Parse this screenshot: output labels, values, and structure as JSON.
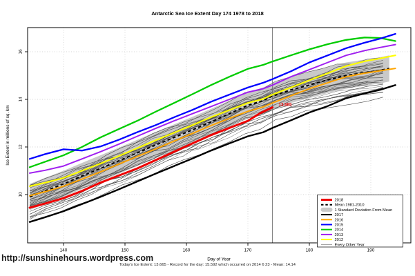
{
  "page": {
    "title": "Antarctic Sea Ice Extent Day 174 1978 to 2018",
    "footer_url": "http://sunshinehours.wordpress.com",
    "footnote": "Today's Ice Extent: 13.665  - Record for the day: 15.592 which occurred on 2014 6 23  - Mean: 14.14"
  },
  "chart_data": {
    "type": "line",
    "title": "Antarctic Sea Ice Extent Day 174 1978 to 2018",
    "xlabel": "Day of Year",
    "ylabel": "Ice Extent in millions of sq. km",
    "xlim": [
      134,
      196.5
    ],
    "ylim": [
      8,
      17
    ],
    "xticks": [
      140,
      150,
      160,
      170,
      180,
      190
    ],
    "yticks": [
      10,
      12,
      14,
      16
    ],
    "grid": "dotted",
    "legend_position": "bottom-right",
    "today": {
      "ice_extent": 13.665,
      "record_for_day": 15.592,
      "record_date": "2014 6 23",
      "mean": 14.14,
      "day_of_year": 174
    },
    "vline": {
      "x_day": 174,
      "color": "#707070"
    },
    "annotation": {
      "text": "13.665",
      "x_day": 175,
      "value": 13.72,
      "color": "#EE0000"
    },
    "mean_line": {
      "name": "Mean 1981-2010",
      "color": "#000000",
      "width": 2,
      "dash": [
        4.5,
        3.5
      ],
      "points": [
        [
          134.5,
          9.9
        ],
        [
          137,
          10.15
        ],
        [
          140,
          10.45
        ],
        [
          143,
          10.78
        ],
        [
          146,
          11.1
        ],
        [
          149,
          11.42
        ],
        [
          152,
          11.75
        ],
        [
          155,
          12.08
        ],
        [
          158,
          12.4
        ],
        [
          161,
          12.72
        ],
        [
          164,
          13.05
        ],
        [
          167,
          13.4
        ],
        [
          170,
          13.75
        ],
        [
          172.5,
          13.95
        ],
        [
          174,
          14.14
        ],
        [
          177,
          14.4
        ],
        [
          180,
          14.6
        ],
        [
          183,
          14.82
        ],
        [
          186,
          15.0
        ],
        [
          189,
          15.12
        ],
        [
          191.5,
          15.22
        ],
        [
          193,
          15.3
        ]
      ]
    },
    "band": {
      "name": "1 Standard Deviation From Mean",
      "color": "#C9C9C9",
      "half_width": 0.55
    },
    "background_years": {
      "name": "Every Other Year",
      "color": "#4D4D4D",
      "width": 0.55,
      "count": 30,
      "spread": 1.2,
      "seed": 7
    },
    "series": [
      {
        "name": "2016",
        "color": "#FFA500",
        "width": 2,
        "points": [
          [
            134.5,
            9.95
          ],
          [
            137,
            10.12
          ],
          [
            140,
            10.35
          ],
          [
            143,
            10.65
          ],
          [
            146,
            10.95
          ],
          [
            149,
            11.28
          ],
          [
            152,
            11.6
          ],
          [
            155,
            11.92
          ],
          [
            158,
            12.25
          ],
          [
            161,
            12.57
          ],
          [
            164,
            12.9
          ],
          [
            167,
            13.2
          ],
          [
            170,
            13.5
          ],
          [
            172.5,
            13.68
          ],
          [
            174,
            13.85
          ],
          [
            177,
            14.15
          ],
          [
            180,
            14.45
          ],
          [
            183,
            14.7
          ],
          [
            186,
            14.95
          ],
          [
            189,
            15.1
          ],
          [
            191.5,
            15.2
          ],
          [
            194,
            15.3
          ]
        ]
      },
      {
        "name": "2012",
        "color": "#FFFF00",
        "width": 2.2,
        "points": [
          [
            134.5,
            10.35
          ],
          [
            137,
            10.5
          ],
          [
            140,
            10.7
          ],
          [
            143,
            11.0
          ],
          [
            146,
            11.3
          ],
          [
            149,
            11.62
          ],
          [
            152,
            11.95
          ],
          [
            155,
            12.28
          ],
          [
            158,
            12.6
          ],
          [
            161,
            12.92
          ],
          [
            164,
            13.25
          ],
          [
            167,
            13.55
          ],
          [
            170,
            13.85
          ],
          [
            172.5,
            14.02
          ],
          [
            174,
            14.2
          ],
          [
            177,
            14.5
          ],
          [
            180,
            14.8
          ],
          [
            183,
            15.1
          ],
          [
            186,
            15.4
          ],
          [
            189,
            15.6
          ],
          [
            191.5,
            15.72
          ],
          [
            194,
            15.85
          ]
        ]
      },
      {
        "name": "2013",
        "color": "#A020F0",
        "width": 2,
        "points": [
          [
            134.5,
            10.9
          ],
          [
            137,
            11.02
          ],
          [
            140,
            11.2
          ],
          [
            143,
            11.5
          ],
          [
            146,
            11.8
          ],
          [
            149,
            12.12
          ],
          [
            152,
            12.45
          ],
          [
            155,
            12.78
          ],
          [
            158,
            13.1
          ],
          [
            161,
            13.4
          ],
          [
            164,
            13.7
          ],
          [
            167,
            14.0
          ],
          [
            170,
            14.3
          ],
          [
            172.5,
            14.45
          ],
          [
            174,
            14.6
          ],
          [
            177,
            14.95
          ],
          [
            180,
            15.25
          ],
          [
            183,
            15.55
          ],
          [
            186,
            15.85
          ],
          [
            189,
            16.05
          ],
          [
            191.5,
            16.18
          ],
          [
            194,
            16.3
          ]
        ]
      },
      {
        "name": "2014",
        "color": "#00CC00",
        "width": 2.3,
        "points": [
          [
            134.5,
            11.15
          ],
          [
            137,
            11.38
          ],
          [
            140,
            11.65
          ],
          [
            143,
            12.0
          ],
          [
            146,
            12.4
          ],
          [
            149,
            12.75
          ],
          [
            152,
            13.1
          ],
          [
            155,
            13.48
          ],
          [
            158,
            13.85
          ],
          [
            161,
            14.22
          ],
          [
            164,
            14.6
          ],
          [
            167,
            14.95
          ],
          [
            170,
            15.28
          ],
          [
            172.5,
            15.45
          ],
          [
            174,
            15.59
          ],
          [
            177,
            15.85
          ],
          [
            180,
            16.1
          ],
          [
            183,
            16.32
          ],
          [
            186,
            16.5
          ],
          [
            189,
            16.6
          ],
          [
            191.5,
            16.58
          ],
          [
            194,
            16.45
          ]
        ]
      },
      {
        "name": "2015",
        "color": "#0000FF",
        "width": 2.3,
        "points": [
          [
            134.5,
            11.5
          ],
          [
            137,
            11.7
          ],
          [
            140,
            11.9
          ],
          [
            143,
            11.85
          ],
          [
            146,
            12.02
          ],
          [
            149,
            12.3
          ],
          [
            152,
            12.62
          ],
          [
            155,
            12.92
          ],
          [
            158,
            13.25
          ],
          [
            161,
            13.56
          ],
          [
            164,
            13.9
          ],
          [
            167,
            14.2
          ],
          [
            170,
            14.5
          ],
          [
            172.5,
            14.7
          ],
          [
            174,
            14.85
          ],
          [
            177,
            15.18
          ],
          [
            180,
            15.55
          ],
          [
            183,
            15.85
          ],
          [
            186,
            16.15
          ],
          [
            189,
            16.38
          ],
          [
            191.5,
            16.55
          ],
          [
            194,
            16.75
          ]
        ]
      },
      {
        "name": "2017",
        "color": "#000000",
        "width": 2.4,
        "points": [
          [
            134.5,
            8.85
          ],
          [
            137,
            9.05
          ],
          [
            140,
            9.3
          ],
          [
            143,
            9.6
          ],
          [
            146,
            9.9
          ],
          [
            149,
            10.22
          ],
          [
            152,
            10.55
          ],
          [
            155,
            10.88
          ],
          [
            158,
            11.2
          ],
          [
            161,
            11.52
          ],
          [
            164,
            11.85
          ],
          [
            167,
            12.15
          ],
          [
            170,
            12.45
          ],
          [
            172.5,
            12.62
          ],
          [
            174,
            12.8
          ],
          [
            177,
            13.12
          ],
          [
            180,
            13.45
          ],
          [
            183,
            13.72
          ],
          [
            186,
            14.05
          ],
          [
            189,
            14.25
          ],
          [
            191.5,
            14.4
          ],
          [
            194,
            14.6
          ]
        ]
      },
      {
        "name": "2018",
        "color": "#EE0000",
        "width": 3,
        "points": [
          [
            134.5,
            9.45
          ],
          [
            137,
            9.62
          ],
          [
            140,
            9.85
          ],
          [
            143,
            10.15
          ],
          [
            146,
            10.5
          ],
          [
            149,
            10.8
          ],
          [
            152,
            11.1
          ],
          [
            155,
            11.45
          ],
          [
            158,
            11.8
          ],
          [
            161,
            12.15
          ],
          [
            164,
            12.5
          ],
          [
            167,
            12.8
          ],
          [
            170,
            13.1
          ],
          [
            172,
            13.42
          ],
          [
            174,
            13.665
          ]
        ]
      }
    ],
    "legend": {
      "items": [
        {
          "label": "2018",
          "color": "#EE0000",
          "style": "thick-line"
        },
        {
          "label": "Mean 1981-2010",
          "color": "#000000",
          "style": "dashed-line"
        },
        {
          "label": "1 Standard Deviation From Mean",
          "color": "#C9C9C9",
          "style": "band"
        },
        {
          "label": "2017",
          "color": "#000000",
          "style": "line"
        },
        {
          "label": "2016",
          "color": "#FFA500",
          "style": "line"
        },
        {
          "label": "2015",
          "color": "#0000FF",
          "style": "line"
        },
        {
          "label": "2014",
          "color": "#00CC00",
          "style": "line"
        },
        {
          "label": "2013",
          "color": "#A020F0",
          "style": "line"
        },
        {
          "label": "2012",
          "color": "#FFFF00",
          "style": "line"
        },
        {
          "label": "Every Other Year",
          "color": "#808080",
          "style": "thin-line"
        }
      ]
    }
  }
}
